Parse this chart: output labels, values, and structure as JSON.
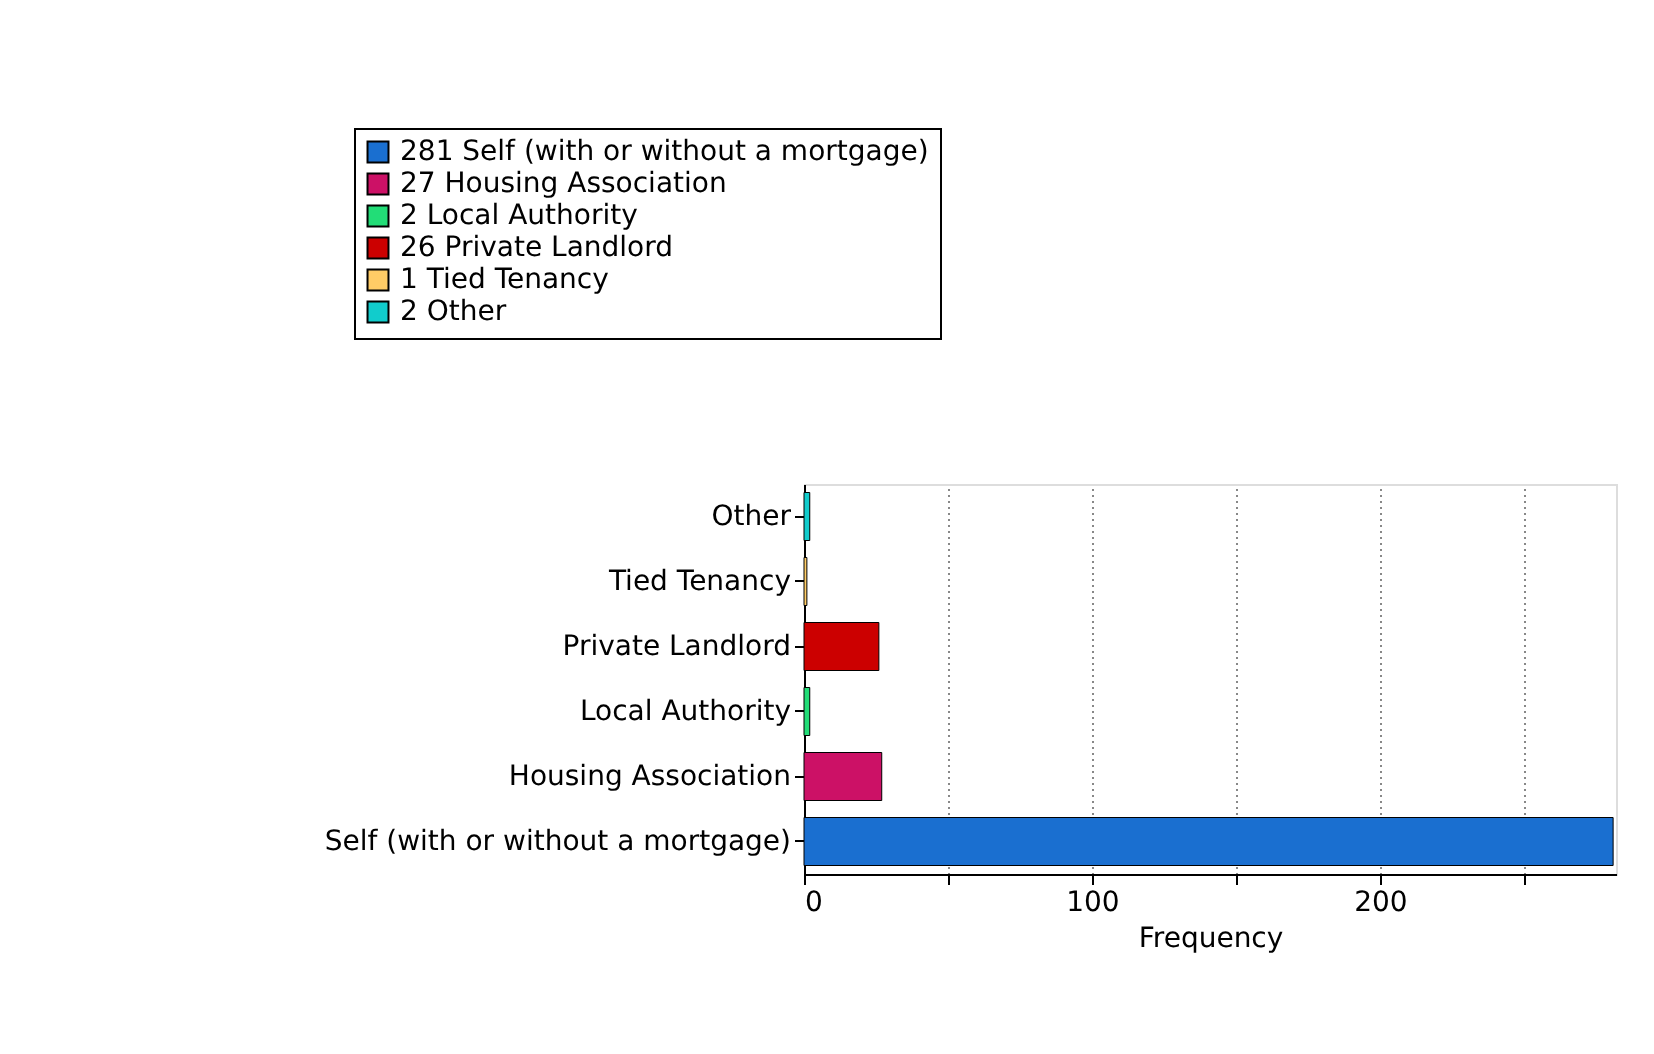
{
  "chart_data": {
    "type": "bar",
    "orientation": "horizontal",
    "xlabel": "Frequency",
    "categories": [
      "Other",
      "Tied Tenancy",
      "Private Landlord",
      "Local Authority",
      "Housing Association",
      "Self (with or without a mortgage)"
    ],
    "series": [
      {
        "name": "281 Self (with or without a mortgage)",
        "color": "#1a6fd0",
        "values": [
          null,
          null,
          null,
          null,
          null,
          281
        ]
      },
      {
        "name": "27 Housing Association",
        "color": "#cc1166",
        "values": [
          null,
          null,
          null,
          null,
          27,
          null
        ]
      },
      {
        "name": "2 Local Authority",
        "color": "#22dd77",
        "values": [
          null,
          null,
          null,
          2,
          null,
          null
        ]
      },
      {
        "name": "26 Private Landlord",
        "color": "#cc0000",
        "values": [
          null,
          null,
          26,
          null,
          null,
          null
        ]
      },
      {
        "name": "1 Tied Tenancy",
        "color": "#ffcc66",
        "values": [
          null,
          1,
          null,
          null,
          null,
          null
        ]
      },
      {
        "name": "2 Other",
        "color": "#11cccc",
        "values": [
          2,
          null,
          null,
          null,
          null,
          null
        ]
      }
    ],
    "xlim": [
      0,
      282
    ],
    "xticks": [
      0,
      {
        "value": 50,
        "label": null
      },
      100,
      {
        "value": 150,
        "label": null
      },
      200,
      {
        "value": 250,
        "label": null
      }
    ],
    "grid": "x",
    "legend": "top"
  }
}
